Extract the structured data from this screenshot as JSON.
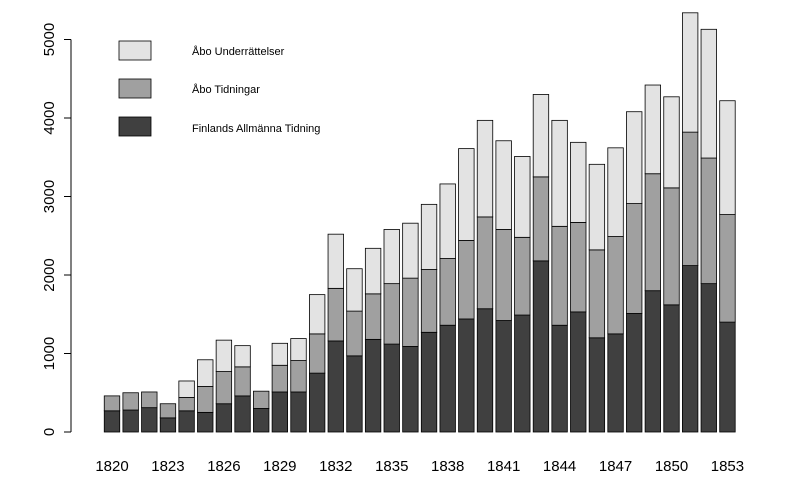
{
  "chart_data": {
    "type": "bar",
    "stacked": true,
    "title": "",
    "xlabel": "",
    "ylabel": "",
    "ylim": [
      0,
      5400
    ],
    "y_ticks": [
      0,
      1000,
      2000,
      3000,
      4000,
      5000
    ],
    "x_tick_labels": [
      "1820",
      "1823",
      "1826",
      "1829",
      "1832",
      "1835",
      "1838",
      "1841",
      "1844",
      "1847",
      "1850",
      "1853"
    ],
    "legend_position": "top-left",
    "grid": false,
    "categories": [
      "1820",
      "1821",
      "1822",
      "1823",
      "1824",
      "1825",
      "1826",
      "1827",
      "1828",
      "1829",
      "1830",
      "1831",
      "1832",
      "1833",
      "1834",
      "1835",
      "1836",
      "1837",
      "1838",
      "1839",
      "1840",
      "1841",
      "1842",
      "1843",
      "1844",
      "1845",
      "1846",
      "1847",
      "1848",
      "1849",
      "1850",
      "1851",
      "1852",
      "1853"
    ],
    "series": [
      {
        "name": "Finlands Allmänna Tidning",
        "color": "#404040",
        "values": [
          270,
          280,
          310,
          180,
          270,
          250,
          360,
          460,
          300,
          510,
          510,
          750,
          1160,
          970,
          1180,
          1120,
          1090,
          1270,
          1360,
          1440,
          1570,
          1420,
          1490,
          2180,
          1360,
          1530,
          1200,
          1250,
          1510,
          1800,
          1620,
          2120,
          1890,
          1400
        ]
      },
      {
        "name": "Åbo Tidningar",
        "color": "#a0a0a0",
        "values": [
          190,
          220,
          200,
          180,
          170,
          330,
          410,
          370,
          220,
          340,
          400,
          500,
          670,
          570,
          580,
          770,
          870,
          800,
          850,
          1000,
          1170,
          1160,
          990,
          1070,
          1260,
          1140,
          1120,
          1240,
          1400,
          1490,
          1490,
          1700,
          1600,
          1370
        ]
      },
      {
        "name": "Åbo Underrättelser",
        "color": "#e3e3e3",
        "values": [
          0,
          0,
          0,
          0,
          210,
          340,
          400,
          270,
          0,
          280,
          280,
          500,
          690,
          540,
          580,
          690,
          700,
          830,
          950,
          1170,
          1230,
          1130,
          1030,
          1050,
          1350,
          1020,
          1090,
          1130,
          1170,
          1130,
          1160,
          1520,
          1640,
          1450
        ]
      }
    ]
  }
}
